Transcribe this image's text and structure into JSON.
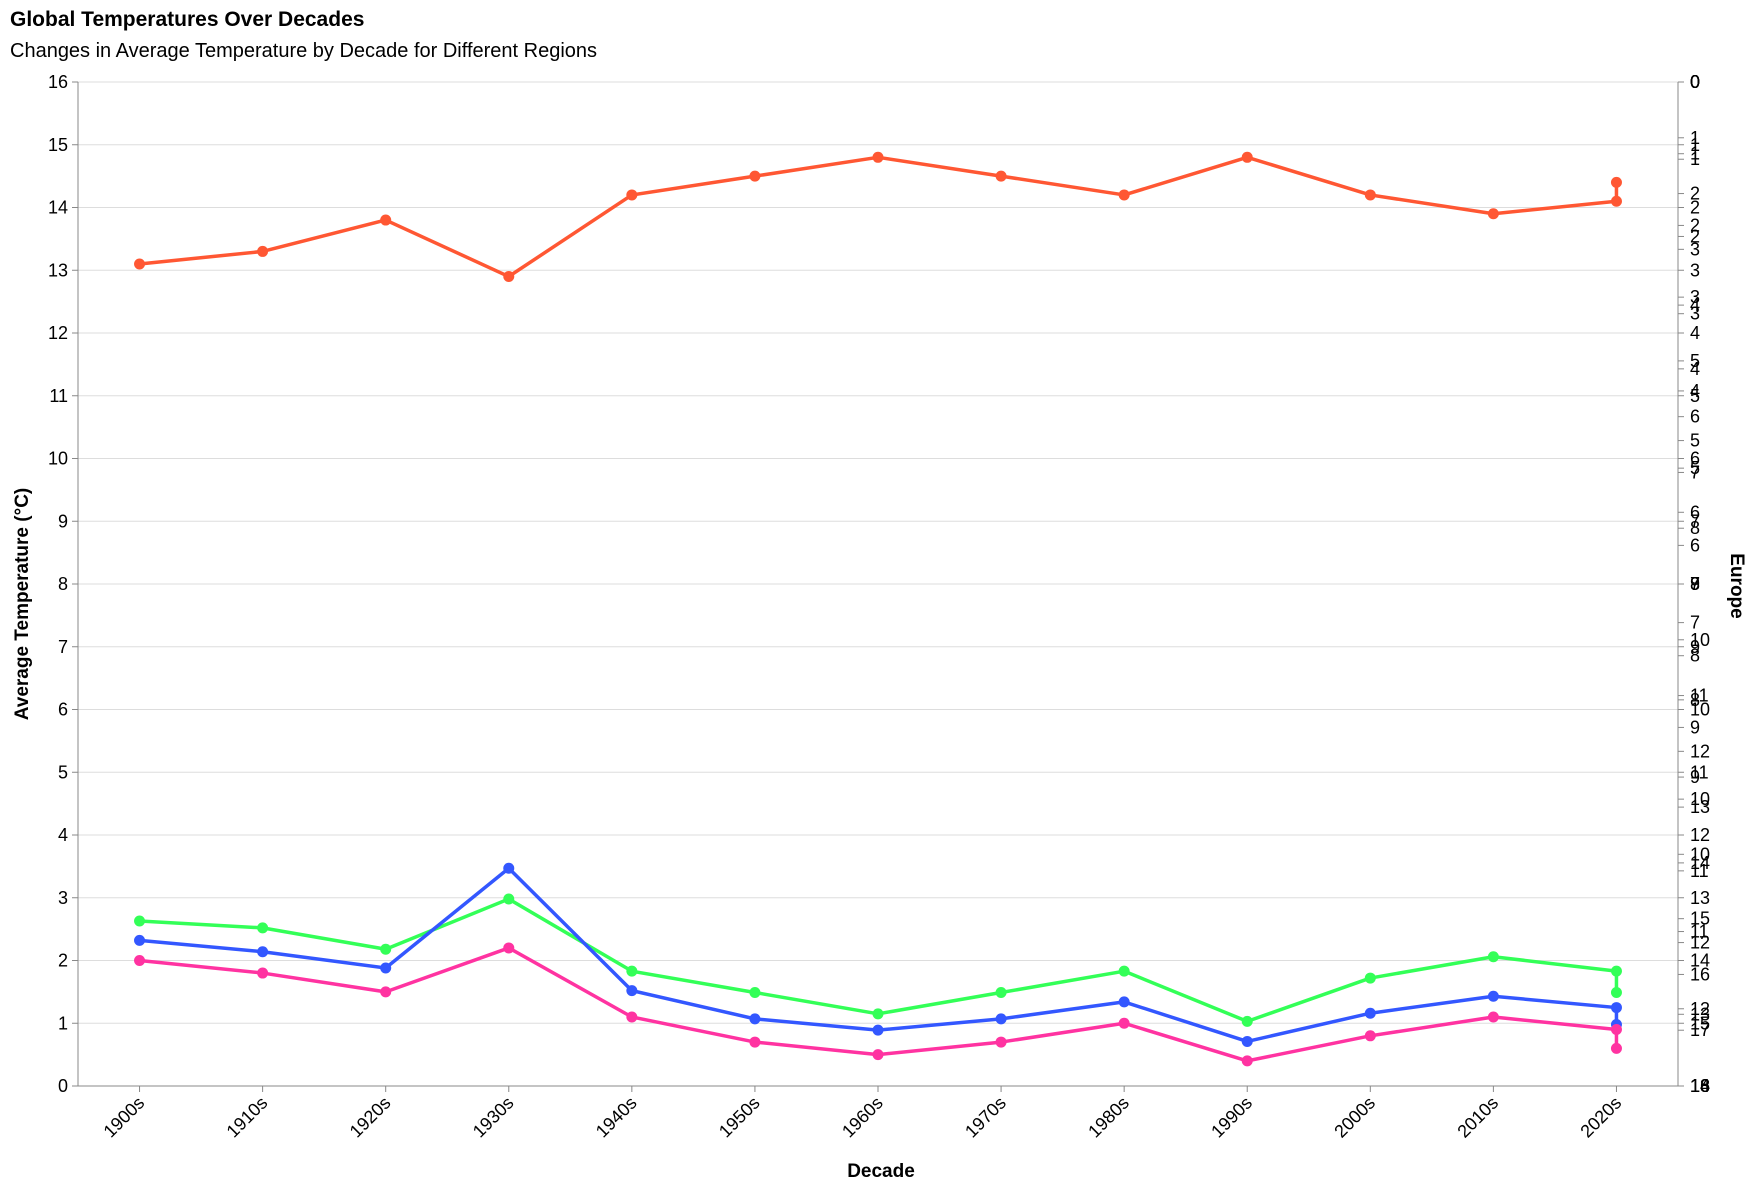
{
  "chart_data": {
    "type": "line",
    "title": "Global Temperatures Over Decades",
    "subtitle": "Changes in Average Temperature by Decade for Different Regions",
    "xlabel": "Decade",
    "ylabel": "Average Temperature (°C)",
    "ylim": [
      0,
      16
    ],
    "yticks": [
      0,
      1,
      2,
      3,
      4,
      5,
      6,
      7,
      8,
      9,
      10,
      11,
      12,
      13,
      14,
      15,
      16
    ],
    "grid": true,
    "categories": [
      "1900s",
      "1910s",
      "1920s",
      "1930s",
      "1940s",
      "1950s",
      "1960s",
      "1970s",
      "1980s",
      "1990s",
      "2000s",
      "2010s",
      "2020s"
    ],
    "series": [
      {
        "color": "#ff5733",
        "values": [
          13.1,
          13.3,
          13.8,
          12.9,
          14.2,
          14.5,
          14.8,
          14.5,
          14.2,
          14.8,
          14.2,
          13.9,
          14.1
        ],
        "extra_points": [
          {
            "x": "2020s",
            "y": 14.4
          }
        ]
      },
      {
        "color": "#33ff57",
        "values": [
          2.63,
          2.52,
          2.18,
          2.98,
          1.83,
          1.49,
          1.15,
          1.49,
          1.83,
          1.03,
          1.72,
          2.06,
          1.83
        ],
        "extra_points": [
          {
            "x": "2020s",
            "y": 1.49
          }
        ]
      },
      {
        "color": "#3357ff",
        "values": [
          2.32,
          2.14,
          1.88,
          3.47,
          1.52,
          1.07,
          0.89,
          1.07,
          1.34,
          0.71,
          1.16,
          1.43,
          1.25
        ],
        "extra_points": [
          {
            "x": "2020s",
            "y": 0.98
          }
        ]
      },
      {
        "color": "#ff33a1",
        "values": [
          2.0,
          1.8,
          1.5,
          2.2,
          1.1,
          0.7,
          0.5,
          0.7,
          1.0,
          0.4,
          0.8,
          1.1,
          0.9
        ],
        "extra_points": [
          {
            "x": "2020s",
            "y": 0.6
          }
        ]
      }
    ],
    "right_axis_title_overlap": "Europe",
    "right_axes": [
      {
        "ticks": [
          "0",
          "1",
          "2",
          "3",
          "4",
          "5",
          "6",
          "7",
          "8",
          "9",
          "10",
          "11",
          "12",
          "13",
          "14",
          "15",
          "16",
          "17",
          "18"
        ]
      },
      {
        "ticks": [
          "0",
          "1",
          "2",
          "3",
          "4",
          "5",
          "6",
          "7",
          "8",
          "9",
          "10",
          "11",
          "12",
          "13",
          "14",
          "15",
          "16"
        ]
      },
      {
        "ticks": [
          "0",
          "1",
          "2",
          "3",
          "4",
          "5",
          "6",
          "7",
          "8",
          "9",
          "10",
          "11",
          "12",
          "13",
          "14"
        ]
      },
      {
        "ticks": [
          "0",
          "1",
          "2",
          "3",
          "4",
          "5",
          "6",
          "7",
          "8",
          "9",
          "10",
          "11",
          "12",
          "13"
        ]
      }
    ]
  }
}
